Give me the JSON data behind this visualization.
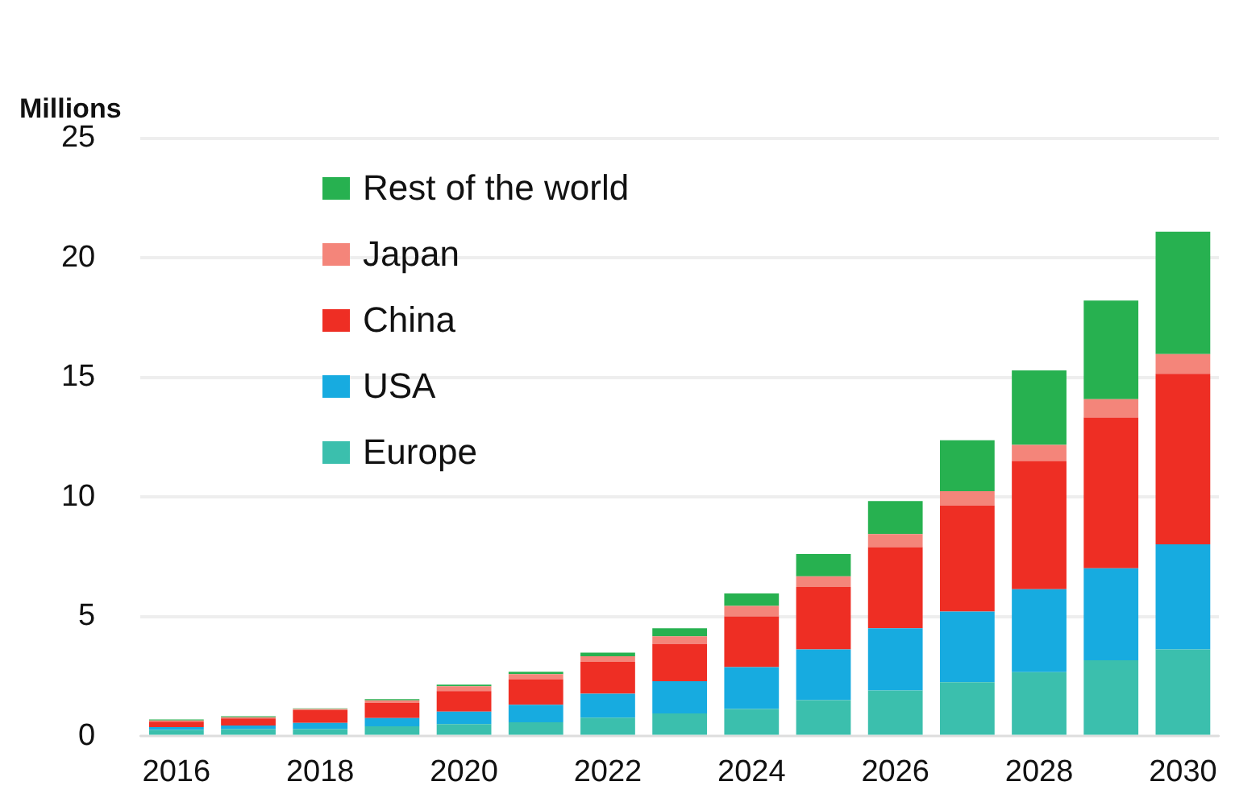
{
  "chart_data": {
    "type": "bar",
    "stacked": true,
    "ylabel": "Millions",
    "categories": [
      "2016",
      null,
      "2018",
      null,
      "2020",
      null,
      "2022",
      null,
      "2024",
      null,
      "2026",
      null,
      "2028",
      null,
      "2030"
    ],
    "ylim": [
      0,
      25
    ],
    "yticks": [
      0,
      5,
      10,
      15,
      20,
      25
    ],
    "grid": "y",
    "legend": "top left",
    "series": [
      {
        "name": "Europe",
        "color": "#3bbfad",
        "values": [
          0.27,
          0.3,
          0.3,
          0.42,
          0.51,
          0.59,
          0.78,
          0.96,
          1.14,
          1.51,
          1.92,
          2.26,
          2.68,
          3.18,
          3.63
        ]
      },
      {
        "name": "USA",
        "color": "#17abe0",
        "values": [
          0.11,
          0.15,
          0.26,
          0.34,
          0.52,
          0.73,
          1.0,
          1.34,
          1.75,
          2.12,
          2.6,
          2.96,
          3.47,
          3.85,
          4.4
        ]
      },
      {
        "name": "China",
        "color": "#ee2e24",
        "values": [
          0.23,
          0.3,
          0.54,
          0.63,
          0.86,
          1.07,
          1.33,
          1.56,
          2.12,
          2.61,
          3.39,
          4.43,
          5.36,
          6.3,
          7.13
        ]
      },
      {
        "name": "Japan",
        "color": "#f4857a",
        "values": [
          0.05,
          0.05,
          0.04,
          0.11,
          0.2,
          0.21,
          0.24,
          0.32,
          0.44,
          0.45,
          0.55,
          0.6,
          0.68,
          0.77,
          0.82
        ]
      },
      {
        "name": "Rest of the world",
        "color": "#27b150",
        "values": [
          0.04,
          0.04,
          0.03,
          0.05,
          0.07,
          0.1,
          0.15,
          0.34,
          0.52,
          0.93,
          1.38,
          2.13,
          3.11,
          4.12,
          5.12
        ]
      }
    ]
  }
}
